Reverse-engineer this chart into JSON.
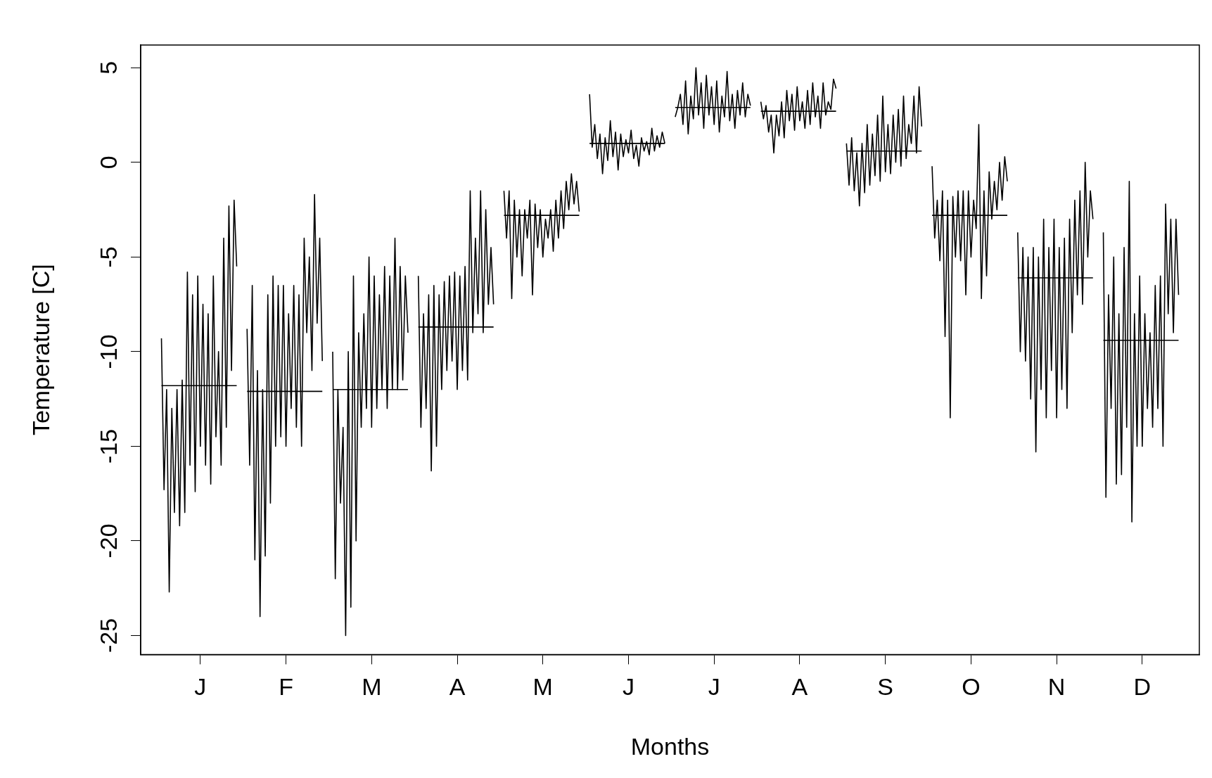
{
  "chart_data": {
    "type": "line",
    "xlabel": "Months",
    "ylabel": "Temperature [C]",
    "categories": [
      null,
      null,
      null,
      null,
      null,
      null,
      null,
      null,
      null,
      null,
      null,
      null,
      null,
      null,
      null,
      null,
      null,
      null,
      null,
      null,
      null,
      null,
      null,
      "J",
      null,
      null,
      null,
      null,
      null,
      null,
      null,
      null,
      null,
      null,
      null,
      null,
      null,
      null,
      null,
      null,
      null,
      null,
      null,
      null,
      null,
      null,
      null,
      null,
      null,
      null,
      null,
      null,
      null,
      null,
      null,
      null,
      "F",
      null,
      null,
      null,
      null,
      null,
      null,
      null,
      null,
      null,
      null,
      null,
      null,
      null,
      null,
      null,
      null,
      null,
      null,
      null,
      null,
      null,
      null,
      null,
      null,
      null,
      null,
      null,
      null,
      null,
      null,
      null,
      null,
      "M",
      null,
      null,
      null,
      null,
      null,
      null,
      null,
      null,
      null,
      null,
      null,
      null,
      null,
      null,
      null,
      null,
      null,
      null,
      null,
      null,
      null,
      null,
      null,
      null,
      null,
      null,
      null,
      null,
      null,
      null,
      null,
      null,
      "A",
      null,
      null,
      null,
      null,
      null,
      null,
      null,
      null,
      null,
      null,
      null,
      null,
      null,
      null,
      null,
      null,
      null,
      null,
      null,
      null,
      null,
      null,
      null,
      null,
      null,
      null,
      null,
      null,
      null,
      null,
      null,
      null,
      "M",
      null,
      null,
      null,
      null,
      null,
      null,
      null,
      null,
      null,
      null,
      null,
      null,
      null,
      null,
      null,
      null,
      null,
      null,
      null,
      null,
      null,
      null,
      null,
      null,
      null,
      null,
      null,
      null,
      null,
      null,
      null,
      null,
      "J",
      null,
      null,
      null,
      null,
      null,
      null,
      null,
      null,
      null,
      null,
      null,
      null,
      null,
      null,
      null,
      null,
      null,
      null,
      null,
      null,
      null,
      null,
      null,
      null,
      null,
      null,
      null,
      null,
      null,
      null,
      null,
      null,
      "J",
      null,
      null,
      null,
      null,
      null,
      null,
      null,
      null,
      null,
      null,
      null,
      null,
      null,
      null,
      null,
      null,
      null,
      null,
      null,
      null,
      null,
      null,
      null,
      null,
      null,
      null,
      null,
      null,
      null,
      null,
      null,
      null,
      "A",
      null,
      null,
      null,
      null,
      null,
      null,
      null,
      null,
      null,
      null,
      null,
      null,
      null,
      null,
      null,
      null,
      null,
      null,
      null,
      null,
      null,
      null,
      null,
      null,
      null,
      null,
      null,
      null,
      null,
      null,
      null,
      null,
      "S",
      null,
      null,
      null,
      null,
      null,
      null,
      null,
      null,
      null,
      null,
      null,
      null,
      null,
      null,
      null,
      null,
      null,
      null,
      null,
      null,
      null,
      null,
      null,
      null,
      null,
      null,
      null,
      null,
      null,
      null,
      null,
      null,
      "O",
      null,
      null,
      null,
      null,
      null,
      null,
      null,
      null,
      null,
      null,
      null,
      null,
      null,
      null,
      null,
      null,
      null,
      null,
      null,
      null,
      null,
      null,
      null,
      null,
      null,
      null,
      null,
      null,
      null,
      null,
      null,
      null,
      "N",
      null,
      null,
      null,
      null,
      null,
      null,
      null,
      null,
      null,
      null,
      null,
      null,
      null,
      null,
      null,
      null,
      null,
      null,
      null,
      null,
      null,
      null,
      null,
      null,
      null,
      null,
      null,
      null,
      null,
      null,
      null,
      null,
      "D",
      null,
      null,
      null,
      null,
      null,
      null,
      null,
      null,
      null,
      null,
      null,
      null,
      null,
      null,
      null,
      null,
      null,
      null,
      null,
      null,
      null,
      null
    ],
    "ylim": [
      -26,
      6.2
    ],
    "yticks": [
      -25,
      -20,
      -15,
      -10,
      -5,
      0,
      5
    ],
    "series": [
      {
        "color": "#000000",
        "values": [
          null,
          null,
          null,
          null,
          null,
          null,
          null,
          null,
          -9.3,
          -17.3,
          -12,
          -22.7,
          -13,
          -18.5,
          -12,
          -19.2,
          -11.5,
          -18.5,
          -5.8,
          -16,
          -7,
          -17.4,
          -6,
          -15,
          -7.5,
          -16,
          -8,
          -17,
          -6,
          -14.5,
          -10,
          -16,
          -4,
          -14,
          -2.3,
          -11,
          -2,
          -5.5,
          null,
          null,
          null,
          -8.8,
          -16,
          -6.5,
          -21,
          -11,
          -24,
          -12,
          -20.8,
          -7,
          -18,
          -6,
          -15,
          -6.5,
          -14.5,
          -6.5,
          -15,
          -8,
          -13,
          -6.5,
          -14,
          -7,
          -15,
          -4,
          -9,
          -5,
          -11,
          -1.7,
          -8.5,
          -4,
          -10.5,
          null,
          null,
          null,
          -10,
          -22,
          -12,
          -18,
          -14,
          -25,
          -10,
          -23.5,
          -6,
          -20,
          -9,
          -14,
          -8,
          -13,
          -5,
          -14,
          -6,
          -13,
          -7,
          -12,
          -5.5,
          -13,
          -6,
          -12,
          -4,
          -12,
          -5.5,
          -11.5,
          -6,
          -9,
          null,
          null,
          null,
          -6,
          -14,
          -8,
          -13,
          -7,
          -16.3,
          -6.5,
          -15,
          -7,
          -12,
          -6.3,
          -11,
          -6,
          -10.5,
          -5.8,
          -12,
          -6,
          -11,
          -5.5,
          -11.5,
          -1.5,
          -9,
          -4,
          -8,
          -1.5,
          -9,
          -2.5,
          -7.5,
          -4.5,
          -7.5,
          null,
          null,
          null,
          -1.5,
          -4,
          -1.5,
          -7.2,
          -2,
          -5,
          -2.5,
          -6,
          -2.5,
          -4,
          -2,
          -7,
          -2.2,
          -4.5,
          -2.5,
          -5,
          -3,
          -4,
          -2.5,
          -4.7,
          -2,
          -4,
          -1.5,
          -3.5,
          -1,
          -2.5,
          -0.6,
          -2.2,
          -1,
          -2.6,
          null,
          null,
          null,
          3.6,
          0.8,
          2,
          0.2,
          1.5,
          -0.6,
          1.3,
          0.1,
          2.2,
          0.3,
          1.6,
          -0.4,
          1.5,
          0.3,
          1.2,
          0.5,
          1.7,
          0.2,
          0.9,
          -0.2,
          1.3,
          0.6,
          1.1,
          0.4,
          1.8,
          0.6,
          1.4,
          0.8,
          1.6,
          1,
          null,
          null,
          null,
          2.4,
          2.9,
          3.6,
          2,
          4.3,
          1.5,
          3.5,
          2.3,
          5,
          2.5,
          4.2,
          1.8,
          4.6,
          2.5,
          4,
          2,
          4.3,
          1.6,
          3.5,
          2.4,
          4.8,
          2.2,
          3.6,
          1.8,
          3.8,
          2.5,
          4.2,
          2.4,
          3.6,
          3,
          null,
          null,
          null,
          3.2,
          2.3,
          3,
          1.6,
          2.5,
          0.5,
          2.5,
          1.4,
          3.2,
          1.3,
          3.8,
          2.2,
          3.6,
          1.7,
          4,
          2.2,
          3.2,
          1.8,
          3.8,
          2,
          4.2,
          2.4,
          3.5,
          1.8,
          4.2,
          2.5,
          3.2,
          2.8,
          4.4,
          3.9,
          null,
          null,
          null,
          1,
          -1.2,
          1.3,
          -1.5,
          0.5,
          -2.3,
          1,
          -1.6,
          2,
          -1.2,
          1.5,
          -0.7,
          2.5,
          -1,
          3.5,
          -0.5,
          2,
          -0.6,
          2.5,
          0,
          2.8,
          -0.2,
          3.5,
          0.2,
          2,
          1,
          3.5,
          0.5,
          4,
          1.9,
          null,
          null,
          null,
          -0.2,
          -4,
          -2,
          -5.2,
          -1.5,
          -9.2,
          -2,
          -13.5,
          -1.8,
          -5,
          -1.5,
          -5.2,
          -1.5,
          -7,
          -1.5,
          -5,
          -2,
          -3.5,
          2,
          -7.2,
          -1.5,
          -6,
          -0.5,
          -3,
          -1,
          -2.5,
          0,
          -2,
          0.3,
          -1,
          null,
          null,
          null,
          -3.7,
          -10,
          -4.5,
          -10.5,
          -5,
          -12.5,
          -4.5,
          -15.3,
          -5,
          -12,
          -3,
          -13.5,
          -4.5,
          -11,
          -3,
          -13.5,
          -4.5,
          -12,
          -4,
          -13,
          -3,
          -9,
          -2,
          -7,
          -1.5,
          -7.5,
          0,
          -5,
          -1.5,
          -3,
          null,
          null,
          null,
          -3.7,
          -17.7,
          -7,
          -13,
          -5,
          -17,
          -8,
          -16.5,
          -4.5,
          -14,
          -1,
          -19,
          -8,
          -15,
          -6,
          -15,
          -8,
          -13,
          -9,
          -14,
          -6.5,
          -13,
          -6,
          -15,
          -2.2,
          -8,
          -3,
          -9,
          -3,
          -7,
          null,
          null,
          null,
          null,
          null,
          null,
          null,
          null
        ]
      },
      {
        "color": "#010101",
        "values": [
          null,
          null,
          null,
          null,
          null,
          null,
          null,
          null,
          -11.8,
          -11.8,
          -11.8,
          -11.8,
          -11.8,
          -11.8,
          -11.8,
          -11.8,
          -11.8,
          -11.8,
          -11.8,
          -11.8,
          -11.8,
          -11.8,
          -11.8,
          -11.8,
          -11.8,
          -11.8,
          -11.8,
          -11.8,
          -11.8,
          -11.8,
          -11.8,
          -11.8,
          -11.8,
          -11.8,
          -11.8,
          -11.8,
          -11.8,
          -11.8,
          null,
          null,
          null,
          -12.1,
          -12.1,
          -12.1,
          -12.1,
          -12.1,
          -12.1,
          -12.1,
          -12.1,
          -12.1,
          -12.1,
          -12.1,
          -12.1,
          -12.1,
          -12.1,
          -12.1,
          -12.1,
          -12.1,
          -12.1,
          -12.1,
          -12.1,
          -12.1,
          -12.1,
          -12.1,
          -12.1,
          -12.1,
          -12.1,
          -12.1,
          -12.1,
          -12.1,
          -12.1,
          null,
          null,
          null,
          -12,
          -12,
          -12,
          -12,
          -12,
          -12,
          -12,
          -12,
          -12,
          -12,
          -12,
          -12,
          -12,
          -12,
          -12,
          -12,
          -12,
          -12,
          -12,
          -12,
          -12,
          -12,
          -12,
          -12,
          -12,
          -12,
          -12,
          -12,
          -12,
          -12,
          null,
          null,
          null,
          -8.7,
          -8.7,
          -8.7,
          -8.7,
          -8.7,
          -8.7,
          -8.7,
          -8.7,
          -8.7,
          -8.7,
          -8.7,
          -8.7,
          -8.7,
          -8.7,
          -8.7,
          -8.7,
          -8.7,
          -8.7,
          -8.7,
          -8.7,
          -8.7,
          -8.7,
          -8.7,
          -8.7,
          -8.7,
          -8.7,
          -8.7,
          -8.7,
          -8.7,
          -8.7,
          null,
          null,
          null,
          -2.8,
          -2.8,
          -2.8,
          -2.8,
          -2.8,
          -2.8,
          -2.8,
          -2.8,
          -2.8,
          -2.8,
          -2.8,
          -2.8,
          -2.8,
          -2.8,
          -2.8,
          -2.8,
          -2.8,
          -2.8,
          -2.8,
          -2.8,
          -2.8,
          -2.8,
          -2.8,
          -2.8,
          -2.8,
          -2.8,
          -2.8,
          -2.8,
          -2.8,
          -2.8,
          null,
          null,
          null,
          1,
          1,
          1,
          1,
          1,
          1,
          1,
          1,
          1,
          1,
          1,
          1,
          1,
          1,
          1,
          1,
          1,
          1,
          1,
          1,
          1,
          1,
          1,
          1,
          1,
          1,
          1,
          1,
          1,
          1,
          null,
          null,
          null,
          2.9,
          2.9,
          2.9,
          2.9,
          2.9,
          2.9,
          2.9,
          2.9,
          2.9,
          2.9,
          2.9,
          2.9,
          2.9,
          2.9,
          2.9,
          2.9,
          2.9,
          2.9,
          2.9,
          2.9,
          2.9,
          2.9,
          2.9,
          2.9,
          2.9,
          2.9,
          2.9,
          2.9,
          2.9,
          2.9,
          null,
          null,
          null,
          2.7,
          2.7,
          2.7,
          2.7,
          2.7,
          2.7,
          2.7,
          2.7,
          2.7,
          2.7,
          2.7,
          2.7,
          2.7,
          2.7,
          2.7,
          2.7,
          2.7,
          2.7,
          2.7,
          2.7,
          2.7,
          2.7,
          2.7,
          2.7,
          2.7,
          2.7,
          2.7,
          2.7,
          2.7,
          2.7,
          null,
          null,
          null,
          0.6,
          0.6,
          0.6,
          0.6,
          0.6,
          0.6,
          0.6,
          0.6,
          0.6,
          0.6,
          0.6,
          0.6,
          0.6,
          0.6,
          0.6,
          0.6,
          0.6,
          0.6,
          0.6,
          0.6,
          0.6,
          0.6,
          0.6,
          0.6,
          0.6,
          0.6,
          0.6,
          0.6,
          0.6,
          0.6,
          null,
          null,
          null,
          -2.8,
          -2.8,
          -2.8,
          -2.8,
          -2.8,
          -2.8,
          -2.8,
          -2.8,
          -2.8,
          -2.8,
          -2.8,
          -2.8,
          -2.8,
          -2.8,
          -2.8,
          -2.8,
          -2.8,
          -2.8,
          -2.8,
          -2.8,
          -2.8,
          -2.8,
          -2.8,
          -2.8,
          -2.8,
          -2.8,
          -2.8,
          -2.8,
          -2.8,
          -2.8,
          null,
          null,
          null,
          -6.1,
          -6.1,
          -6.1,
          -6.1,
          -6.1,
          -6.1,
          -6.1,
          -6.1,
          -6.1,
          -6.1,
          -6.1,
          -6.1,
          -6.1,
          -6.1,
          -6.1,
          -6.1,
          -6.1,
          -6.1,
          -6.1,
          -6.1,
          -6.1,
          -6.1,
          -6.1,
          -6.1,
          -6.1,
          -6.1,
          -6.1,
          -6.1,
          -6.1,
          -6.1,
          null,
          null,
          null,
          -9.4,
          -9.4,
          -9.4,
          -9.4,
          -9.4,
          -9.4,
          -9.4,
          -9.4,
          -9.4,
          -9.4,
          -9.4,
          -9.4,
          -9.4,
          -9.4,
          -9.4,
          -9.4,
          -9.4,
          -9.4,
          -9.4,
          -9.4,
          -9.4,
          -9.4,
          -9.4,
          -9.4,
          -9.4,
          -9.4,
          -9.4,
          -9.4,
          -9.4,
          -9.4,
          null,
          null,
          null,
          null,
          null,
          null,
          null,
          null
        ]
      }
    ]
  }
}
